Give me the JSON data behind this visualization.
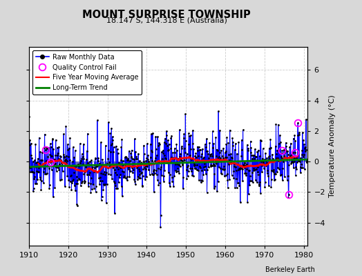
{
  "title": "MOUNT SURPRISE TOWNSHIP",
  "subtitle": "18.147 S, 144.318 E (Australia)",
  "ylabel": "Temperature Anomaly (°C)",
  "credit": "Berkeley Earth",
  "xlim": [
    1910,
    1981
  ],
  "ylim": [
    -5.5,
    7.5
  ],
  "yticks": [
    -4,
    -2,
    0,
    2,
    4,
    6
  ],
  "xticks": [
    1910,
    1920,
    1930,
    1940,
    1950,
    1960,
    1970,
    1980
  ],
  "bg_color": "#d8d8d8",
  "plot_bg_color": "#ffffff",
  "seed": 42,
  "start_year": 1910,
  "end_year": 1980
}
